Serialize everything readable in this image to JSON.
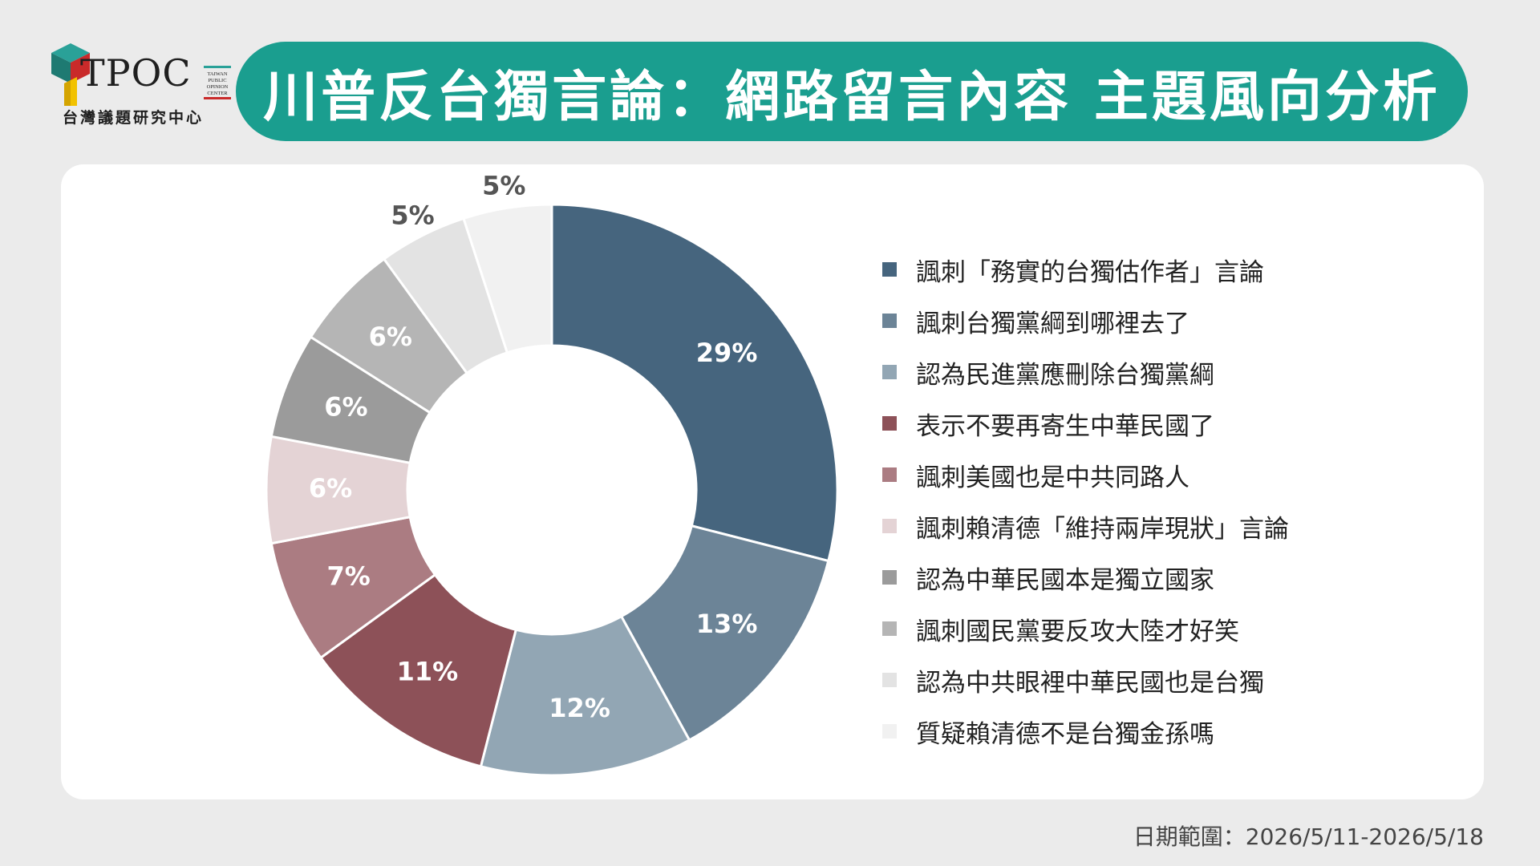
{
  "logo": {
    "wordmark": "TPOC",
    "box_text": "TAIWAN PUBLIC OPINION CENTER",
    "subtitle": "台灣議題研究中心"
  },
  "title": "川普反台獨言論：網路留言內容 主題風向分析",
  "date_range": "日期範圍：2026/5/11-2026/5/18",
  "chart_data": {
    "type": "pie",
    "donut": true,
    "categories": [
      "諷刺「務實的台獨估作者」言論",
      "諷刺台獨黨綱到哪裡去了",
      "認為民進黨應刪除台獨黨綱",
      "表示不要再寄生中華民國了",
      "諷刺美國也是中共同路人",
      "諷刺賴清德「維持兩岸現狀」言論",
      "認為中華民國本是獨立國家",
      "諷刺國民黨要反攻大陸才好笑",
      "認為中共眼裡中華民國也是台獨",
      "質疑賴清德不是台獨金孫嗎"
    ],
    "values": [
      29,
      13,
      12,
      11,
      7,
      6,
      6,
      6,
      5,
      5
    ],
    "labels": [
      "29%",
      "13%",
      "12%",
      "11%",
      "7%",
      "6%",
      "6%",
      "6%",
      "5%",
      "5%"
    ],
    "colors": [
      "#46657e",
      "#6c8497",
      "#92a6b4",
      "#8d5158",
      "#ab7c82",
      "#e4d3d5",
      "#9b9b9b",
      "#b5b5b5",
      "#e3e3e3",
      "#f1f1f1"
    ],
    "label_colors": [
      "#ffffff",
      "#ffffff",
      "#ffffff",
      "#ffffff",
      "#ffffff",
      "#ffffff",
      "#ffffff",
      "#ffffff",
      "#555555",
      "#555555"
    ],
    "label_outside": [
      false,
      false,
      false,
      false,
      false,
      false,
      false,
      false,
      true,
      true
    ],
    "legend_position": "right",
    "start_angle": "12 o'clock, clockwise"
  }
}
